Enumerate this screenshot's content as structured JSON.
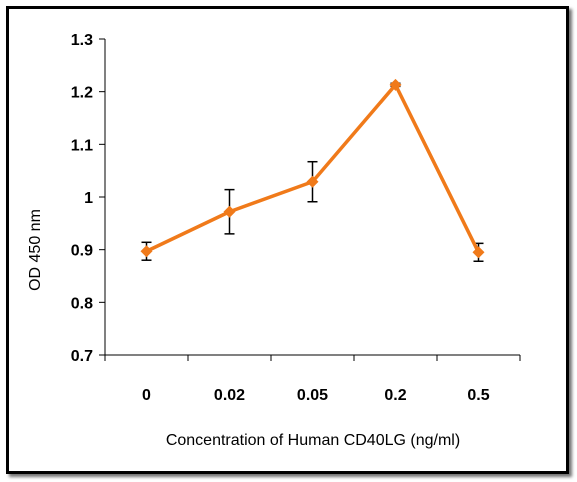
{
  "chart_data": {
    "type": "line",
    "title": "",
    "xlabel": "Concentration of Human CD40LG (ng/ml)",
    "ylabel": "OD 450 nm",
    "categories": [
      "0",
      "0.02",
      "0.05",
      "0.2",
      "0.5"
    ],
    "series": [
      {
        "values": [
          0.897,
          0.972,
          1.029,
          1.213,
          0.895
        ],
        "error": [
          0.017,
          0.042,
          0.038,
          0.003,
          0.017
        ],
        "color": "#f07a1a",
        "marker": "diamond"
      }
    ],
    "ylim": [
      0.7,
      1.3
    ],
    "yticks": [
      "0.7",
      "0.8",
      "0.9",
      "1",
      "1.1",
      "1.2",
      "1.3"
    ],
    "grid": false,
    "legend": "none"
  }
}
